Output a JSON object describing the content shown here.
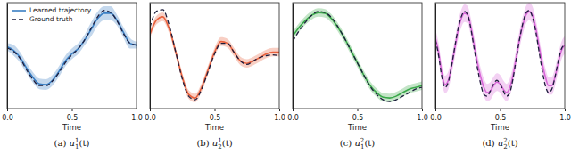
{
  "chart_data": [
    {
      "type": "line",
      "xlabel": "Time",
      "caption": {
        "prefix": "(a)",
        "base": "u",
        "sup": "1",
        "sub": "1",
        "suffix": "(t)"
      },
      "x": [
        0,
        0.05,
        0.1,
        0.15,
        0.2,
        0.25,
        0.3,
        0.35,
        0.4,
        0.45,
        0.5,
        0.55,
        0.6,
        0.65,
        0.7,
        0.75,
        0.8,
        0.85,
        0.9,
        0.95,
        1
      ],
      "xlim": [
        0,
        1
      ],
      "xticks": [
        {
          "value": 0,
          "label": "0.0"
        },
        {
          "value": 0.5,
          "label": "0.5"
        },
        {
          "value": 1,
          "label": "1.0"
        }
      ],
      "ylim": [
        -1.5,
        1.5
      ],
      "yticks": [],
      "tick_labels": "x",
      "grid": false,
      "legend": "upper left",
      "series": [
        {
          "name": "Learned trajectory",
          "color": "#3a7fc4",
          "line_style": "solid",
          "values": [
            0.25,
            0.15,
            -0.05,
            -0.35,
            -0.62,
            -0.8,
            -0.82,
            -0.7,
            -0.45,
            -0.15,
            0.05,
            0.2,
            0.45,
            0.75,
            1.05,
            1.2,
            1.2,
            1.0,
            0.65,
            0.35,
            0.3
          ],
          "lower": [
            0.15,
            0.0,
            -0.2,
            -0.5,
            -0.77,
            -0.95,
            -0.97,
            -0.85,
            -0.6,
            -0.3,
            -0.1,
            0.05,
            0.3,
            0.55,
            0.85,
            1.0,
            1.0,
            0.85,
            0.5,
            0.2,
            0.2
          ],
          "upper": [
            0.35,
            0.3,
            0.1,
            -0.2,
            -0.47,
            -0.65,
            -0.67,
            -0.55,
            -0.3,
            0.0,
            0.2,
            0.35,
            0.6,
            0.95,
            1.25,
            1.4,
            1.4,
            1.15,
            0.8,
            0.5,
            0.4
          ]
        },
        {
          "name": "Ground truth",
          "color": "#1c1c3c",
          "line_style": "dashed",
          "values": [
            0.22,
            0.12,
            -0.08,
            -0.4,
            -0.68,
            -0.85,
            -0.85,
            -0.72,
            -0.48,
            -0.2,
            0.02,
            0.2,
            0.45,
            0.78,
            1.1,
            1.28,
            1.22,
            0.98,
            0.62,
            0.35,
            0.3
          ]
        }
      ]
    },
    {
      "type": "line",
      "xlabel": "Time",
      "caption": {
        "prefix": "(b)",
        "base": "u",
        "sup": "1",
        "sub": "2",
        "suffix": "(t)"
      },
      "x": [
        0,
        0.05,
        0.1,
        0.15,
        0.2,
        0.25,
        0.3,
        0.35,
        0.4,
        0.45,
        0.5,
        0.55,
        0.6,
        0.65,
        0.7,
        0.75,
        0.8,
        0.85,
        0.9,
        0.95,
        1
      ],
      "xlim": [
        0,
        1
      ],
      "xticks": [
        {
          "value": 0,
          "label": "0.0"
        },
        {
          "value": 0.5,
          "label": "0.5"
        },
        {
          "value": 1,
          "label": "1.0"
        }
      ],
      "ylim": [
        -1.5,
        1.5
      ],
      "yticks": [],
      "tick_labels": "x",
      "grid": false,
      "series": [
        {
          "color": "#e8603c",
          "line_style": "solid",
          "values": [
            0.6,
            1.0,
            1.1,
            0.75,
            0.1,
            -0.6,
            -1.1,
            -1.2,
            -0.9,
            -0.4,
            0.1,
            0.4,
            0.35,
            0.1,
            -0.15,
            -0.22,
            -0.15,
            -0.05,
            0.05,
            0.1,
            0.1
          ],
          "lower": [
            0.48,
            0.88,
            0.98,
            0.63,
            -0.02,
            -0.72,
            -1.22,
            -1.32,
            -1.02,
            -0.52,
            -0.02,
            0.28,
            0.23,
            -0.02,
            -0.27,
            -0.34,
            -0.27,
            -0.17,
            -0.07,
            -0.02,
            -0.02
          ],
          "upper": [
            0.72,
            1.12,
            1.22,
            0.87,
            0.22,
            -0.48,
            -0.98,
            -1.08,
            -0.78,
            -0.28,
            0.22,
            0.52,
            0.47,
            0.22,
            -0.03,
            -0.1,
            -0.03,
            0.07,
            0.17,
            0.22,
            0.22
          ]
        },
        {
          "color": "#1c1c3c",
          "line_style": "dashed",
          "values": [
            0.8,
            1.25,
            1.3,
            0.85,
            0.1,
            -0.65,
            -1.15,
            -1.25,
            -0.95,
            -0.45,
            0.05,
            0.35,
            0.35,
            0.1,
            -0.15,
            -0.25,
            -0.15,
            -0.05,
            0.0,
            0.02,
            0.0
          ]
        }
      ]
    },
    {
      "type": "line",
      "xlabel": "Time",
      "caption": {
        "prefix": "(c)",
        "base": "u",
        "sup": "2",
        "sub": "1",
        "suffix": "(t)"
      },
      "x": [
        0,
        0.05,
        0.1,
        0.15,
        0.2,
        0.25,
        0.3,
        0.35,
        0.4,
        0.45,
        0.5,
        0.55,
        0.6,
        0.65,
        0.7,
        0.75,
        0.8,
        0.85,
        0.9,
        0.95,
        1
      ],
      "xlim": [
        0,
        1
      ],
      "xticks": [
        {
          "value": 0,
          "label": "0.0"
        },
        {
          "value": 0.5,
          "label": "0.5"
        },
        {
          "value": 1,
          "label": "1.0"
        }
      ],
      "ylim": [
        -1.5,
        1.5
      ],
      "yticks": [],
      "tick_labels": "x",
      "grid": false,
      "series": [
        {
          "color": "#3aa84a",
          "line_style": "solid",
          "values": [
            0.55,
            0.8,
            1.0,
            1.15,
            1.22,
            1.2,
            1.05,
            0.8,
            0.5,
            0.15,
            -0.2,
            -0.55,
            -0.85,
            -1.05,
            -1.18,
            -1.2,
            -1.15,
            -1.05,
            -0.95,
            -0.9,
            -0.85
          ],
          "lower": [
            0.43,
            0.68,
            0.88,
            1.03,
            1.1,
            1.08,
            0.93,
            0.68,
            0.38,
            0.03,
            -0.32,
            -0.67,
            -0.97,
            -1.17,
            -1.3,
            -1.32,
            -1.27,
            -1.17,
            -1.07,
            -1.02,
            -0.97
          ],
          "upper": [
            0.67,
            0.92,
            1.12,
            1.27,
            1.34,
            1.32,
            1.17,
            0.92,
            0.62,
            0.27,
            -0.08,
            -0.43,
            -0.73,
            -0.93,
            -1.06,
            -1.08,
            -1.03,
            -0.93,
            -0.83,
            -0.78,
            -0.73
          ]
        },
        {
          "color": "#1c1c3c",
          "line_style": "dashed",
          "values": [
            0.4,
            0.7,
            0.95,
            1.15,
            1.25,
            1.22,
            1.08,
            0.82,
            0.5,
            0.15,
            -0.2,
            -0.55,
            -0.88,
            -1.1,
            -1.25,
            -1.3,
            -1.25,
            -1.15,
            -1.05,
            -0.95,
            -0.9
          ]
        }
      ]
    },
    {
      "type": "line",
      "xlabel": "Time",
      "caption": {
        "prefix": "(d)",
        "base": "u",
        "sup": "2",
        "sub": "2",
        "suffix": "(t)"
      },
      "x": [
        0,
        0.025,
        0.05,
        0.075,
        0.1,
        0.125,
        0.15,
        0.175,
        0.2,
        0.225,
        0.25,
        0.275,
        0.3,
        0.325,
        0.35,
        0.375,
        0.4,
        0.425,
        0.45,
        0.475,
        0.5,
        0.525,
        0.55,
        0.575,
        0.6,
        0.625,
        0.65,
        0.675,
        0.7,
        0.725,
        0.75,
        0.775,
        0.8,
        0.825,
        0.85,
        0.875,
        0.9,
        0.925,
        0.95,
        0.975,
        1
      ],
      "xlim": [
        0,
        1
      ],
      "xticks": [
        {
          "value": 0,
          "label": "0.0"
        },
        {
          "value": 0.5,
          "label": "0.5"
        },
        {
          "value": 1,
          "label": "1.0"
        }
      ],
      "ylim": [
        -1.5,
        1.5
      ],
      "yticks": [],
      "tick_labels": "x",
      "grid": false,
      "series": [
        {
          "color": "#d867d8",
          "line_style": "solid",
          "values": [
            0.5,
            0.1,
            -0.5,
            -0.82,
            -0.7,
            -0.3,
            0.2,
            0.7,
            1.05,
            1.2,
            1.15,
            0.8,
            0.3,
            -0.2,
            -0.6,
            -0.9,
            -1.05,
            -1.0,
            -0.85,
            -0.75,
            -0.8,
            -0.95,
            -1.05,
            -0.9,
            -0.55,
            -0.05,
            0.45,
            0.85,
            1.15,
            1.25,
            1.15,
            0.8,
            0.3,
            -0.2,
            -0.6,
            -0.85,
            -0.85,
            -0.6,
            -0.2,
            0.15,
            0.3
          ],
          "lower": [
            0.25,
            -0.15,
            -0.75,
            -1.07,
            -0.95,
            -0.55,
            -0.05,
            0.45,
            0.8,
            0.95,
            0.9,
            0.55,
            0.05,
            -0.45,
            -0.85,
            -1.15,
            -1.3,
            -1.25,
            -1.1,
            -1.0,
            -1.05,
            -1.2,
            -1.3,
            -1.15,
            -0.8,
            -0.3,
            0.2,
            0.6,
            0.9,
            1.0,
            0.9,
            0.55,
            0.05,
            -0.45,
            -0.85,
            -1.1,
            -1.1,
            -0.85,
            -0.45,
            -0.1,
            0.05
          ],
          "upper": [
            0.75,
            0.35,
            -0.25,
            -0.57,
            -0.45,
            -0.05,
            0.45,
            0.95,
            1.3,
            1.45,
            1.4,
            1.05,
            0.55,
            0.05,
            -0.35,
            -0.65,
            -0.8,
            -0.75,
            -0.6,
            -0.5,
            -0.55,
            -0.7,
            -0.8,
            -0.65,
            -0.3,
            0.2,
            0.7,
            1.1,
            1.4,
            1.5,
            1.4,
            1.05,
            0.55,
            0.05,
            -0.35,
            -0.6,
            -0.6,
            -0.35,
            0.05,
            0.4,
            0.55
          ]
        },
        {
          "color": "#1c1c3c",
          "line_style": "dashed",
          "values": [
            0.45,
            0.0,
            -0.6,
            -0.9,
            -0.75,
            -0.3,
            0.25,
            0.75,
            1.1,
            1.25,
            1.15,
            0.75,
            0.2,
            -0.35,
            -0.8,
            -1.1,
            -1.15,
            -1.0,
            -0.8,
            -0.7,
            -0.8,
            -1.0,
            -1.15,
            -1.05,
            -0.65,
            -0.1,
            0.45,
            0.9,
            1.2,
            1.28,
            1.1,
            0.7,
            0.15,
            -0.4,
            -0.85,
            -1.05,
            -0.95,
            -0.6,
            -0.15,
            0.2,
            0.3
          ]
        }
      ]
    }
  ]
}
